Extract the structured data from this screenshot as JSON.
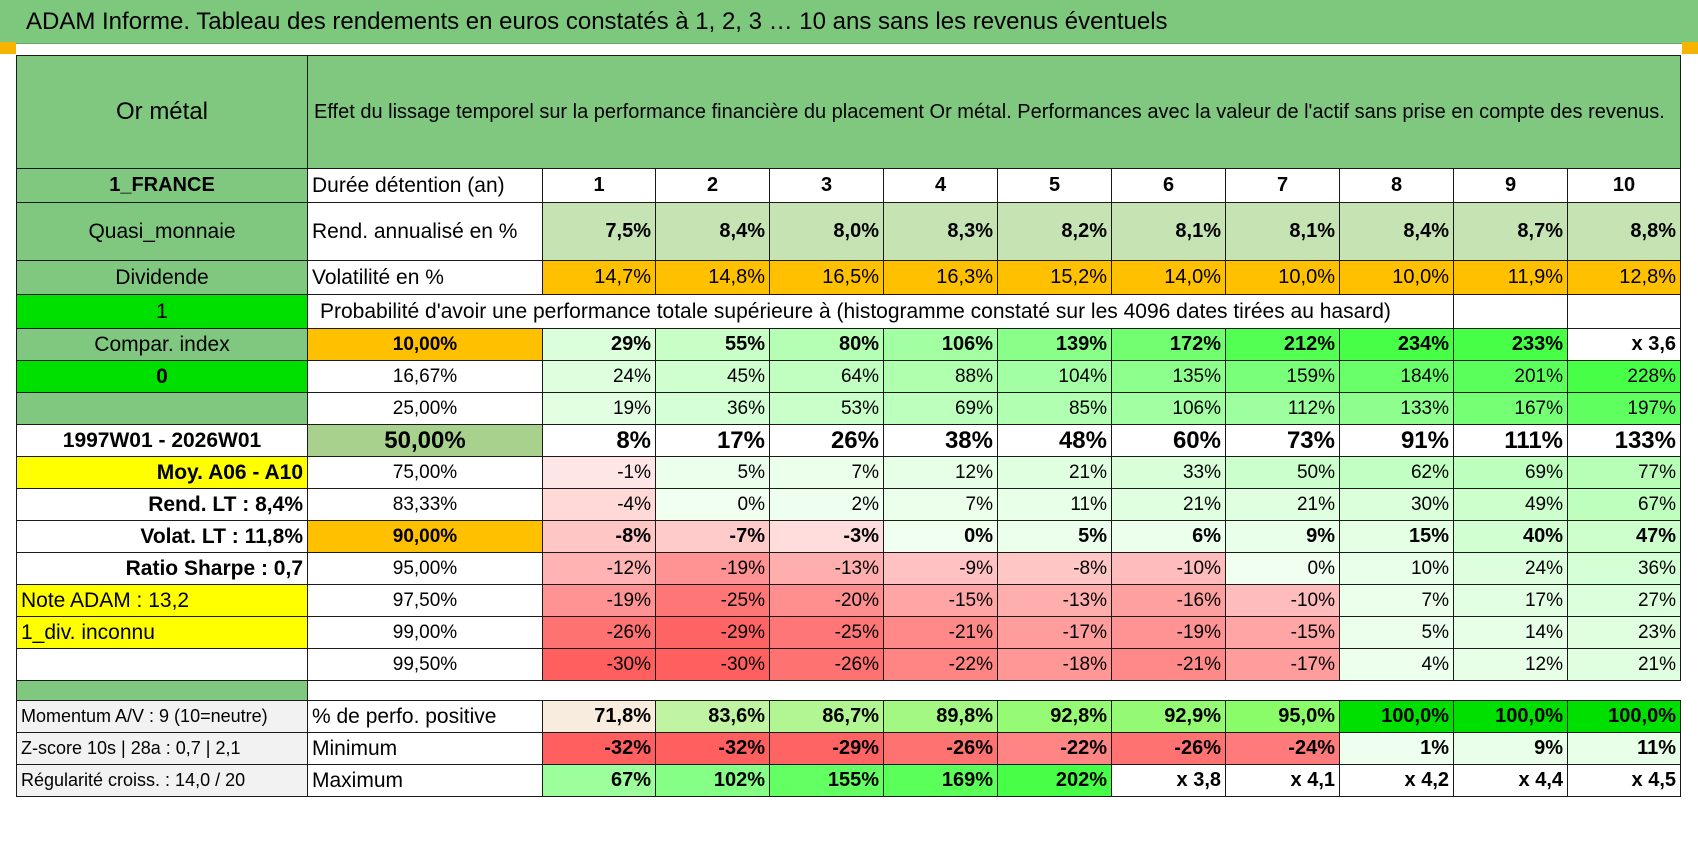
{
  "title": "ADAM Informe. Tableau des rendements en euros constatés à 1, 2, 3 … 10 ans sans les revenus éventuels",
  "header": {
    "asset": "Or métal",
    "description": "Effet du lissage temporel sur la performance financière du placement Or métal. Performances avec la valeur de l'actif sans prise en compte des revenus."
  },
  "durations": {
    "side": "1_FRANCE",
    "label": "Durée détention (an)",
    "years": [
      "1",
      "2",
      "3",
      "4",
      "5",
      "6",
      "7",
      "8",
      "9",
      "10"
    ]
  },
  "rendement": {
    "side": "Quasi_monnaie",
    "label": "Rend. annualisé en %",
    "values": [
      "7,5%",
      "8,4%",
      "8,0%",
      "8,3%",
      "8,2%",
      "8,1%",
      "8,1%",
      "8,4%",
      "8,7%",
      "8,8%"
    ]
  },
  "volatilite": {
    "side": "Dividende",
    "label": "Volatilité en %",
    "values": [
      "14,7%",
      "14,8%",
      "16,5%",
      "16,3%",
      "15,2%",
      "14,0%",
      "10,0%",
      "10,0%",
      "11,9%",
      "12,8%"
    ]
  },
  "proba": {
    "side": "1",
    "label": "Probabilité d'avoir une performance totale supérieure à (histogramme constaté sur les 4096 dates tirées au hasard)"
  },
  "rows": [
    {
      "side": "Compar. index",
      "pct": "10,00%",
      "values": [
        "29%",
        "55%",
        "80%",
        "106%",
        "139%",
        "172%",
        "212%",
        "234%",
        "233%",
        "x 3,6"
      ]
    },
    {
      "side": "0",
      "pct": "16,67%",
      "values": [
        "24%",
        "45%",
        "64%",
        "88%",
        "104%",
        "135%",
        "159%",
        "184%",
        "201%",
        "228%"
      ]
    },
    {
      "side": "",
      "pct": "25,00%",
      "values": [
        "19%",
        "36%",
        "53%",
        "69%",
        "85%",
        "106%",
        "112%",
        "133%",
        "167%",
        "197%"
      ]
    },
    {
      "side": "1997W01 - 2026W01",
      "pct": "50,00%",
      "values": [
        "8%",
        "17%",
        "26%",
        "38%",
        "48%",
        "60%",
        "73%",
        "91%",
        "111%",
        "133%"
      ]
    },
    {
      "side": "Moy. A06 - A10",
      "pct": "75,00%",
      "values": [
        "-1%",
        "5%",
        "7%",
        "12%",
        "21%",
        "33%",
        "50%",
        "62%",
        "69%",
        "77%"
      ]
    },
    {
      "side": "Rend. LT :    8,4%",
      "pct": "83,33%",
      "values": [
        "-4%",
        "0%",
        "2%",
        "7%",
        "11%",
        "21%",
        "21%",
        "30%",
        "49%",
        "67%"
      ]
    },
    {
      "side": "Volat. LT :    11,8%",
      "pct": "90,00%",
      "values": [
        "-8%",
        "-7%",
        "-3%",
        "0%",
        "5%",
        "6%",
        "9%",
        "15%",
        "40%",
        "47%"
      ]
    },
    {
      "side": "Ratio Sharpe :     0,7",
      "pct": "95,00%",
      "values": [
        "-12%",
        "-19%",
        "-13%",
        "-9%",
        "-8%",
        "-10%",
        "0%",
        "10%",
        "24%",
        "36%"
      ]
    },
    {
      "side": "Note ADAM : 13,2",
      "pct": "97,50%",
      "values": [
        "-19%",
        "-25%",
        "-20%",
        "-15%",
        "-13%",
        "-16%",
        "-10%",
        "7%",
        "17%",
        "27%"
      ]
    },
    {
      "side": "1_div. inconnu",
      "pct": "99,00%",
      "values": [
        "-26%",
        "-29%",
        "-25%",
        "-21%",
        "-17%",
        "-19%",
        "-15%",
        "5%",
        "14%",
        "23%"
      ]
    },
    {
      "side": "",
      "pct": "99,50%",
      "values": [
        "-30%",
        "-30%",
        "-26%",
        "-22%",
        "-18%",
        "-21%",
        "-17%",
        "4%",
        "12%",
        "21%"
      ]
    }
  ],
  "stats": [
    {
      "side": "Momentum A/V : 9 (10=neutre)",
      "label": "% de perfo. positive",
      "values": [
        "71,8%",
        "83,6%",
        "86,7%",
        "89,8%",
        "92,8%",
        "92,9%",
        "95,0%",
        "100,0%",
        "100,0%",
        "100,0%"
      ]
    },
    {
      "side": "Z-score 10s | 28a : 0,7 | 2,1",
      "label": "Minimum",
      "values": [
        "-32%",
        "-32%",
        "-29%",
        "-26%",
        "-22%",
        "-26%",
        "-24%",
        "1%",
        "9%",
        "11%"
      ]
    },
    {
      "side": "Régularité croiss. : 14,0 / 20",
      "label": "Maximum",
      "values": [
        "67%",
        "102%",
        "155%",
        "169%",
        "202%",
        "x 3,8",
        "x 4,1",
        "x 4,2",
        "x 4,4",
        "x 4,5"
      ]
    }
  ],
  "colors": {
    "header_green": "#80c880",
    "orange": "#ffc000",
    "yellow": "#ffff00",
    "bright_green": "#00e000",
    "text_red": "#e00000"
  }
}
